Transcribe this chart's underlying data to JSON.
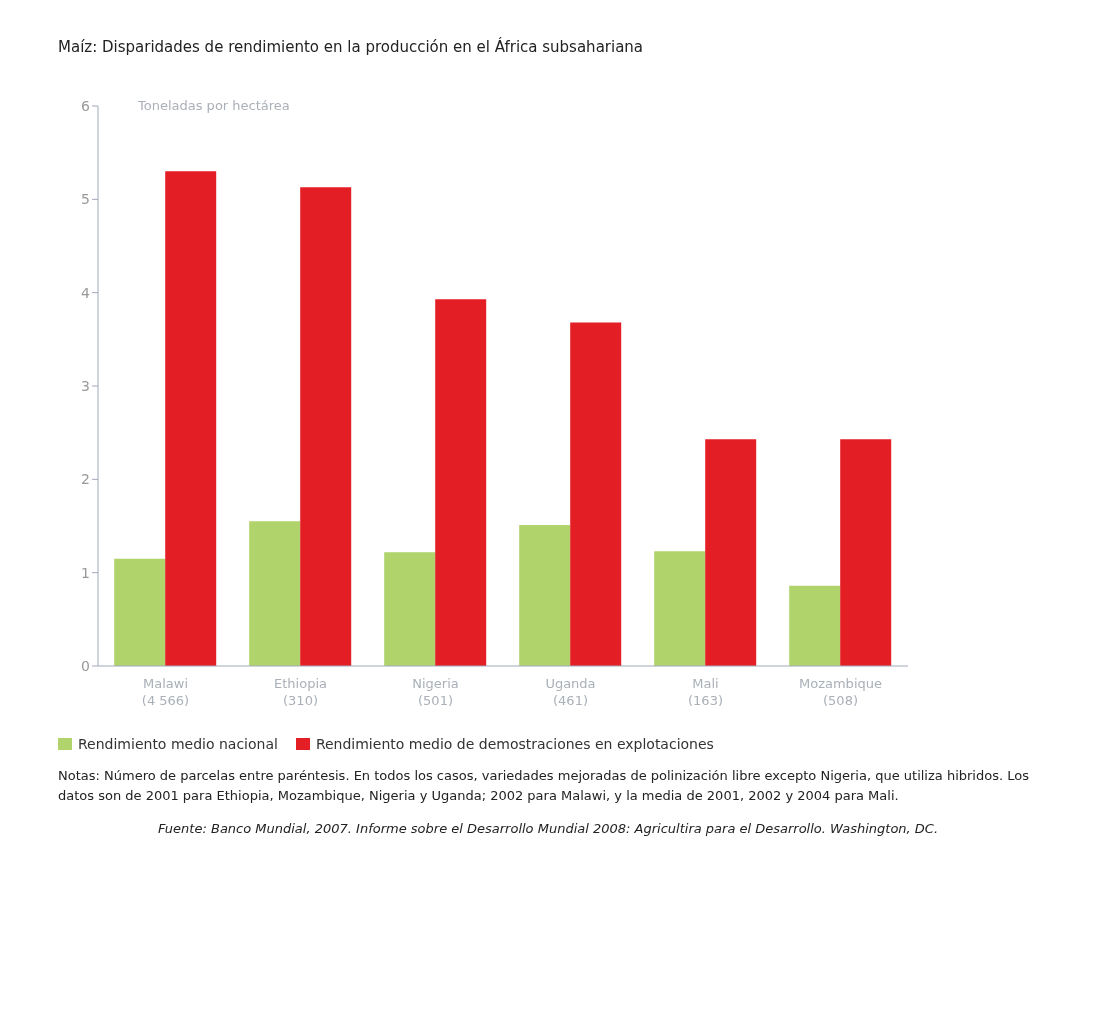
{
  "chart_data": {
    "type": "bar",
    "title": "Maíz: Disparidades de rendimiento en la producción en el África subsahariana",
    "ylabel": "Toneladas por hectárea",
    "categories": [
      "Malawi\n(4 566)",
      "Ethiopia\n(310)",
      "Nigeria\n(501)",
      "Uganda\n(461)",
      "Mali\n(163)",
      "Mozambique\n(508)"
    ],
    "series": [
      {
        "name": "Rendimiento medio nacional",
        "color": "#b1d36b",
        "values": [
          1.15,
          1.55,
          1.22,
          1.51,
          1.23,
          0.86
        ]
      },
      {
        "name": "Rendimiento medio de demostraciones en explotaciones",
        "color": "#e41e25",
        "values": [
          5.3,
          5.13,
          3.93,
          3.68,
          2.43,
          2.43
        ]
      }
    ],
    "ylim": [
      0,
      6
    ],
    "yticks": [
      0,
      1,
      2,
      3,
      4,
      5,
      6
    ],
    "grid": false,
    "legend": "bottom",
    "annotations": [
      "Notas: Número de parcelas entre paréntesis. En todos los casos, variedades mejoradas de polinización libre excepto Nigeria, que utiliza hibridos. Los datos son de 2001 para Ethiopia, Mozambique, Nigeria y Uganda; 2002 para Malawi, y la media de 2001, 2002 y 2004 para Mali.",
      "Fuente: Banco Mundial, 2007. Informe sobre el Desarrollo Mundial 2008: Agricultira para el Desarrollo. Washington, DC."
    ]
  }
}
